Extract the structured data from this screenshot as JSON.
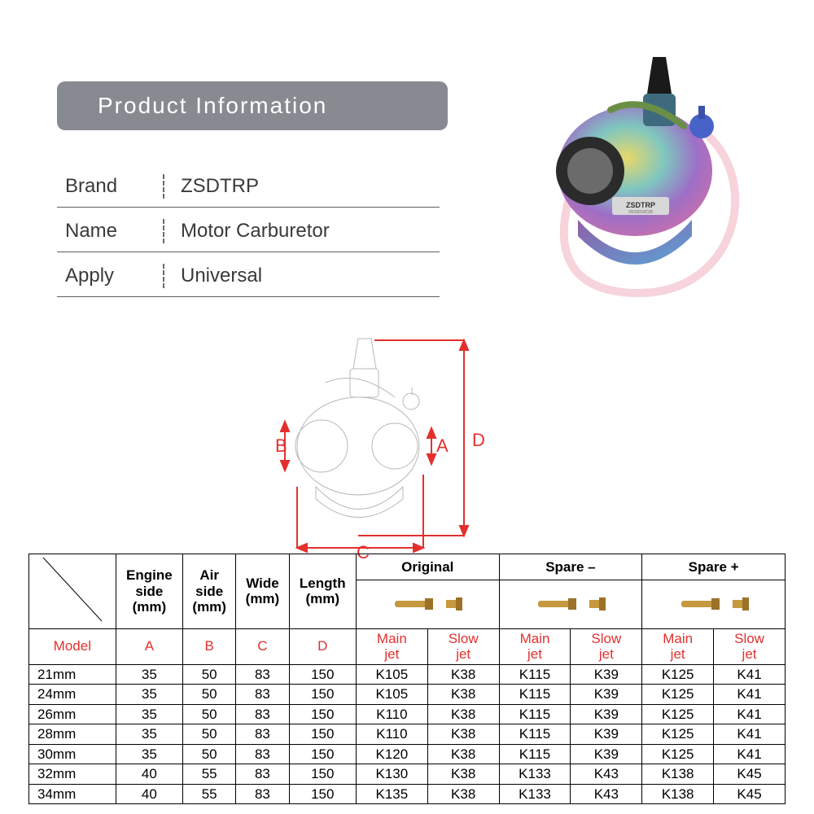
{
  "header": {
    "title": "Product  Information"
  },
  "info": {
    "rows": [
      {
        "label": "Brand",
        "value": "ZSDTRP"
      },
      {
        "label": "Name",
        "value": "Motor Carburetor"
      },
      {
        "label": "Apply",
        "value": "Universal"
      }
    ]
  },
  "diagram": {
    "labels": {
      "A": "A",
      "B": "B",
      "C": "C",
      "D": "D"
    },
    "dim_color": "#e3302e",
    "sketch_color": "#b8b8b8"
  },
  "product_image": {
    "body_colors": [
      "#c9a84a",
      "#6ec2c2",
      "#9b6fc4",
      "#d46fa2"
    ],
    "tube_color": "#f7d3db",
    "cap_color": "#1a1a1a",
    "knob_color": "#4763c8",
    "bowl_color1": "#8f5fa8",
    "bowl_color2": "#5aa3d6",
    "label_text": "ZSDTRP"
  },
  "table": {
    "groups": [
      "Original",
      "Spare –",
      "Spare +"
    ],
    "dim_headers": {
      "engine": [
        "Engine",
        "side",
        "(mm)"
      ],
      "air": [
        "Air",
        "side",
        "(mm)"
      ],
      "wide": [
        "Wide",
        "(mm)"
      ],
      "length": [
        "Length",
        "(mm)"
      ]
    },
    "jet_headers": {
      "main": [
        "Main",
        "jet"
      ],
      "slow": [
        "Slow",
        "jet"
      ]
    },
    "letter_headers": {
      "A": "A",
      "B": "B",
      "C": "C",
      "D": "D"
    },
    "model_label": "Model",
    "rows": [
      {
        "model": "21mm",
        "A": "35",
        "B": "50",
        "C": "83",
        "D": "150",
        "o_m": "K105",
        "o_s": "K38",
        "sm_m": "K115",
        "sm_s": "K39",
        "sp_m": "K125",
        "sp_s": "K41"
      },
      {
        "model": "24mm",
        "A": "35",
        "B": "50",
        "C": "83",
        "D": "150",
        "o_m": "K105",
        "o_s": "K38",
        "sm_m": "K115",
        "sm_s": "K39",
        "sp_m": "K125",
        "sp_s": "K41"
      },
      {
        "model": "26mm",
        "A": "35",
        "B": "50",
        "C": "83",
        "D": "150",
        "o_m": "K110",
        "o_s": "K38",
        "sm_m": "K115",
        "sm_s": "K39",
        "sp_m": "K125",
        "sp_s": "K41"
      },
      {
        "model": "28mm",
        "A": "35",
        "B": "50",
        "C": "83",
        "D": "150",
        "o_m": "K110",
        "o_s": "K38",
        "sm_m": "K115",
        "sm_s": "K39",
        "sp_m": "K125",
        "sp_s": "K41"
      },
      {
        "model": "30mm",
        "A": "35",
        "B": "50",
        "C": "83",
        "D": "150",
        "o_m": "K120",
        "o_s": "K38",
        "sm_m": "K115",
        "sm_s": "K39",
        "sp_m": "K125",
        "sp_s": "K41"
      },
      {
        "model": "32mm",
        "A": "40",
        "B": "55",
        "C": "83",
        "D": "150",
        "o_m": "K130",
        "o_s": "K38",
        "sm_m": "K133",
        "sm_s": "K43",
        "sp_m": "K138",
        "sp_s": "K45"
      },
      {
        "model": "34mm",
        "A": "40",
        "B": "55",
        "C": "83",
        "D": "150",
        "o_m": "K135",
        "o_s": "K38",
        "sm_m": "K133",
        "sm_s": "K43",
        "sp_m": "K138",
        "sp_s": "K45"
      }
    ],
    "jet_icon_colors": {
      "brass": "#c6983f",
      "brass_dark": "#9b7228"
    }
  },
  "colors": {
    "header_bg": "#878A91",
    "text": "#3a3a3a",
    "red": "#e3302e"
  }
}
